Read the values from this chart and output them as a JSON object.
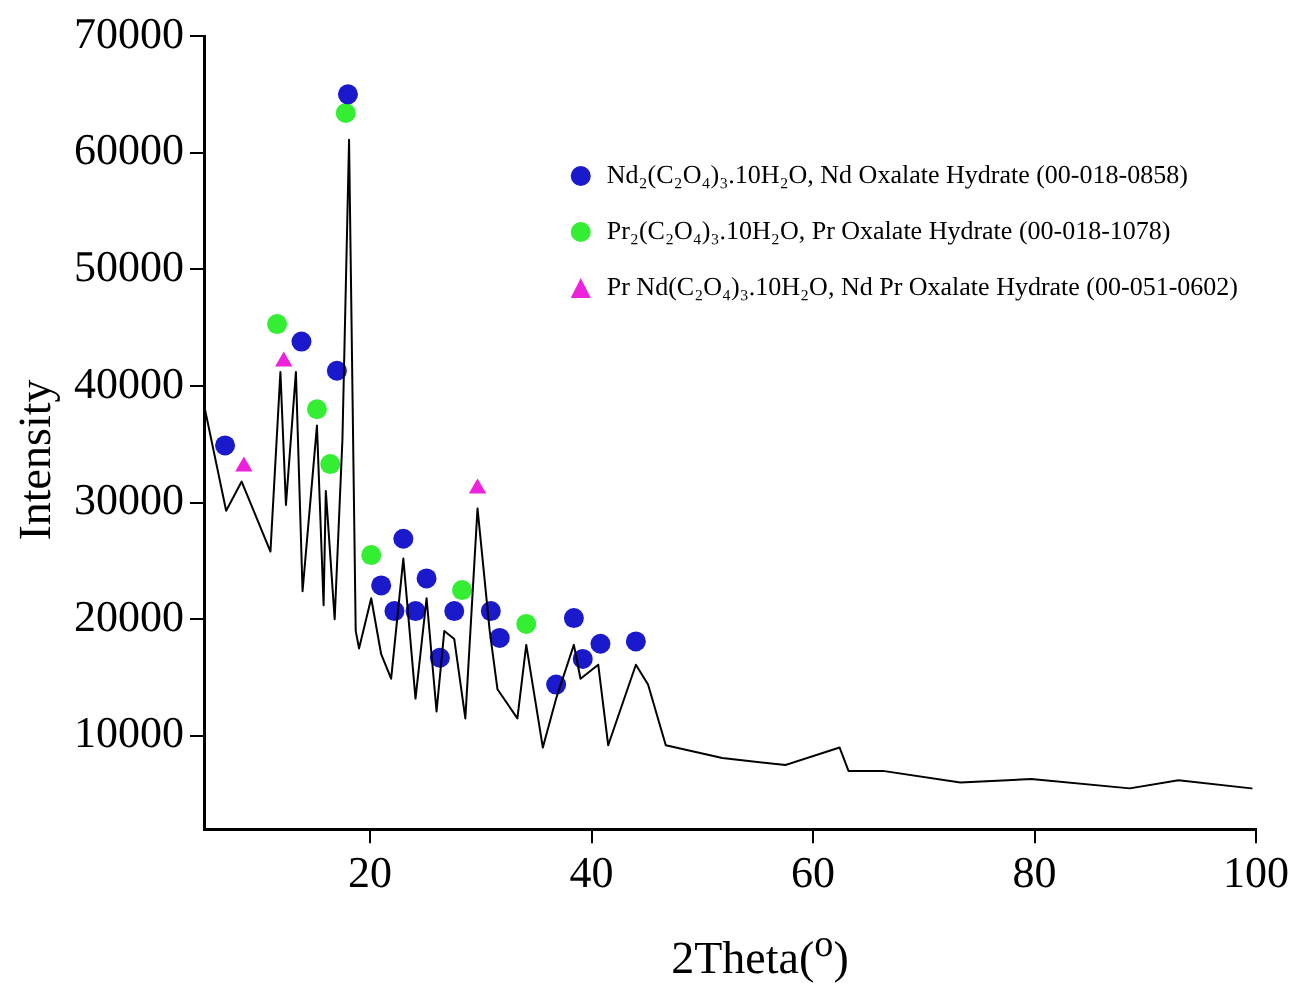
{
  "chart_data": {
    "type": "line",
    "xlabel": "2Theta($^{o}$)",
    "ylabel": "Intensity",
    "xlim": [
      5,
      100
    ],
    "ylim": [
      2000,
      70000
    ],
    "xticks": [
      20,
      40,
      60,
      80,
      100
    ],
    "yticks": [
      10000,
      20000,
      30000,
      40000,
      50000,
      60000,
      70000
    ],
    "grid": false,
    "legend": "top right",
    "series": [
      {
        "color": "#000000",
        "marker": "none",
        "x": [
          5,
          7,
          8.4,
          11,
          11.9,
          12.4,
          13.3,
          13.9,
          15.2,
          15.8,
          16,
          16.8,
          17.5,
          18.1,
          18.7,
          19,
          20.1,
          21,
          21.9,
          23,
          24.1,
          25.1,
          26,
          26.7,
          27.6,
          28.6,
          29.7,
          30.8,
          31.5,
          33.3,
          34.1,
          35.6,
          36.8,
          38.4,
          39,
          40.6,
          41.5,
          44,
          45.1,
          46.7,
          51.8,
          57.5,
          62.4,
          63.2,
          66.3,
          73.3,
          79.7,
          88.6,
          93,
          99.6
        ],
        "values": [
          38400,
          29300,
          31800,
          25800,
          41200,
          29800,
          41200,
          22400,
          36600,
          21200,
          31000,
          20000,
          35400,
          61100,
          19000,
          17500,
          21800,
          17000,
          14900,
          25200,
          13200,
          21800,
          12100,
          19000,
          18300,
          11500,
          29500,
          19000,
          14000,
          11500,
          17800,
          9000,
          13200,
          17800,
          14900,
          16100,
          9200,
          16100,
          14400,
          9200,
          8100,
          7500,
          9000,
          7000,
          7000,
          6000,
          6300,
          5500,
          6200,
          5500
        ]
      },
      {
        "type": "scatter",
        "name": "Nd₂(C₂O₄)₃.10H₂O, Nd Oxalate Hydrate (00-018-0858)",
        "color": "#1a1acc",
        "marker": "circle",
        "x": [
          6.9,
          13.8,
          17,
          18,
          21,
          22.2,
          23,
          24.1,
          25.1,
          26.3,
          27.6,
          30.9,
          31.7,
          36.8,
          38.4,
          39.2,
          40.8,
          44
        ],
        "values": [
          34900,
          43800,
          41300,
          65000,
          22900,
          20700,
          26900,
          20700,
          23500,
          16700,
          20700,
          20700,
          18400,
          14400,
          20100,
          16600,
          17900,
          18100
        ]
      },
      {
        "type": "scatter",
        "name": "Pr₂(C₂O₄)₃.10H₂O, Pr Oxalate Hydrate (00-018-1078)",
        "color": "#33ee33",
        "marker": "circle",
        "x": [
          11.6,
          15.2,
          16.4,
          17.8,
          20.1,
          28.3,
          34.1
        ],
        "values": [
          45300,
          38000,
          33300,
          63400,
          25500,
          22500,
          19600
        ]
      },
      {
        "type": "scatter",
        "name": "Pr Nd(C₂O₄)₃.10H₂O, Nd Pr Oxalate Hydrate (00-051-0602)",
        "color": "#ee22dd",
        "marker": "triangle",
        "x": [
          8.6,
          12.2,
          29.7
        ],
        "values": [
          33100,
          42100,
          31200
        ]
      }
    ]
  }
}
